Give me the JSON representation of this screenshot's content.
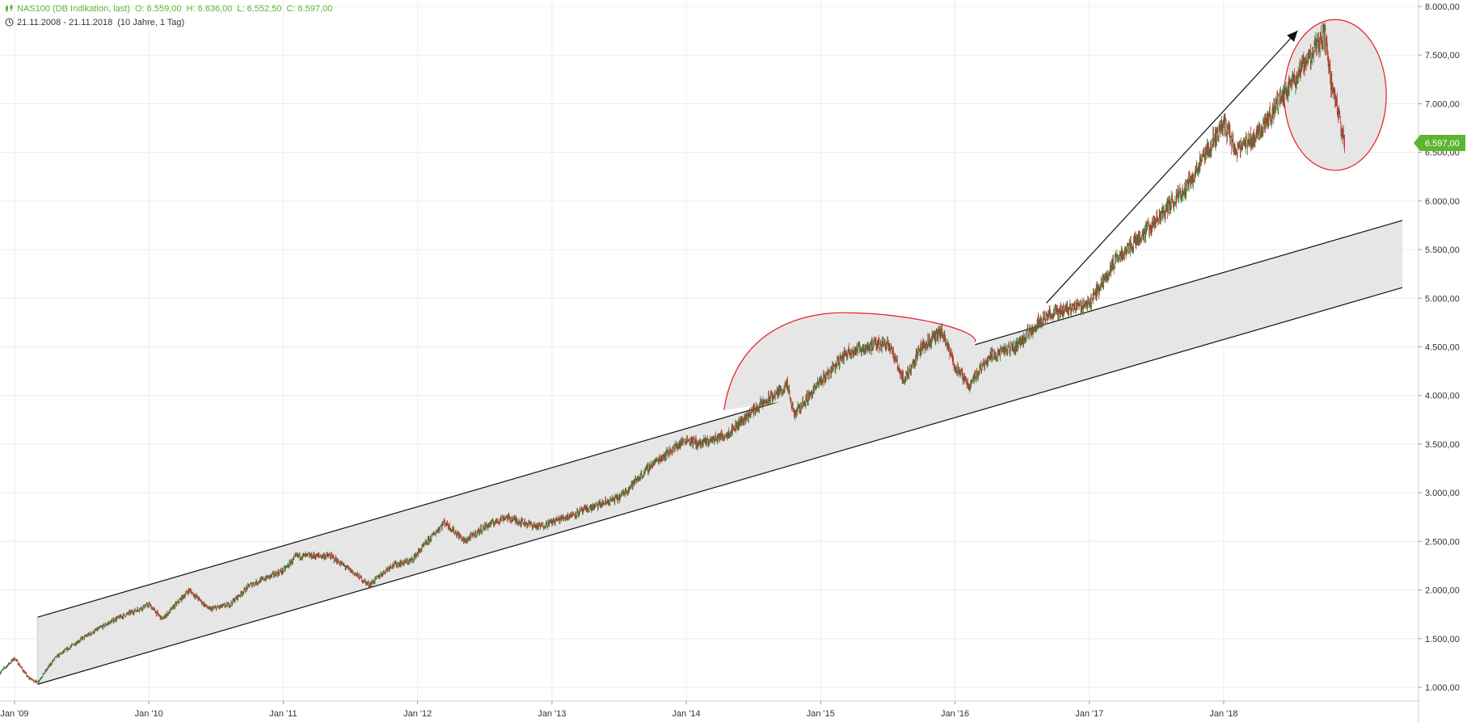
{
  "header": {
    "symbol": "NAS100 (DB Indikation, last)",
    "open": "O: 6.559,00",
    "high": "H: 6.636,00",
    "low": "L: 6.552,50",
    "close": "C: 6.597,00",
    "range": "21.11.2008 - 21.11.2018",
    "period": "(10 Jahre, 1 Tag)"
  },
  "colors": {
    "header": "#5cb531",
    "candle_up": "#2e7d32",
    "candle_down": "#c62828",
    "last_label_bg": "#5cb531",
    "highlight": "#e8192c",
    "channel_fill": "#e6e6e6"
  },
  "chart_data": {
    "type": "candlestick",
    "title": "NAS100 (DB Indikation, last)",
    "y_ticks": [
      "1.000,00",
      "1.500,00",
      "2.000,00",
      "2.500,00",
      "3.000,00",
      "3.500,00",
      "4.000,00",
      "4.500,00",
      "5.000,00",
      "5.500,00",
      "6.000,00",
      "6.500,00",
      "7.000,00",
      "7.500,00",
      "8.000,00"
    ],
    "y_tick_values": [
      1000,
      1500,
      2000,
      2500,
      3000,
      3500,
      4000,
      4500,
      5000,
      5500,
      6000,
      6500,
      7000,
      7500,
      8000
    ],
    "ylim": [
      930,
      8000
    ],
    "x_ticks": [
      "Jan '09",
      "Jan '10",
      "Jan '11",
      "Jan '12",
      "Jan '13",
      "Jan '14",
      "Jan '15",
      "Jan '16",
      "Jan '17",
      "Jan '18"
    ],
    "x_tick_values": [
      2009.0,
      2010.0,
      2011.0,
      2012.0,
      2013.0,
      2014.0,
      2015.0,
      2016.0,
      2017.0,
      2018.0
    ],
    "xlim": [
      2008.89,
      2019.45
    ],
    "grid": true,
    "last_value": 6597,
    "last_label": "6.597,00",
    "series": [
      {
        "x": [
          2008.89,
          2009.0,
          2009.1,
          2009.17,
          2009.3,
          2009.5,
          2009.75,
          2010.0,
          2010.1,
          2010.3,
          2010.45,
          2010.6,
          2010.75,
          2011.0,
          2011.1,
          2011.35,
          2011.55,
          2011.64,
          2011.8,
          2011.95,
          2012.2,
          2012.35,
          2012.5,
          2012.65,
          2012.9,
          2013.0,
          2013.3,
          2013.5,
          2013.75,
          2014.0,
          2014.1,
          2014.3,
          2014.5,
          2014.75,
          2014.8,
          2015.0,
          2015.2,
          2015.5,
          2015.62,
          2015.75,
          2015.9,
          2016.0,
          2016.1,
          2016.25,
          2016.45,
          2016.65,
          2016.85,
          2017.0,
          2017.2,
          2017.5,
          2017.75,
          2018.0,
          2018.1,
          2018.25,
          2018.55,
          2018.75,
          2018.8,
          2018.9
        ],
        "y": [
          1150,
          1300,
          1100,
          1050,
          1300,
          1500,
          1700,
          1850,
          1700,
          2000,
          1800,
          1850,
          2050,
          2200,
          2350,
          2350,
          2150,
          2050,
          2250,
          2300,
          2700,
          2500,
          2650,
          2750,
          2650,
          2700,
          2850,
          2950,
          3300,
          3550,
          3500,
          3600,
          3850,
          4100,
          3800,
          4150,
          4450,
          4550,
          4150,
          4500,
          4650,
          4300,
          4100,
          4400,
          4500,
          4800,
          4900,
          4950,
          5400,
          5800,
          6200,
          6800,
          6500,
          6700,
          7300,
          7700,
          7200,
          6600
        ]
      }
    ],
    "annotations": {
      "arrow": {
        "from": [
          2016.68,
          4950
        ],
        "to": [
          2018.55,
          7750
        ]
      },
      "channel": {
        "upper_start": [
          2009.17,
          1720
        ],
        "upper_end": [
          2019.33,
          5800
        ],
        "lower_start": [
          2009.17,
          1030
        ],
        "lower_end": [
          2019.33,
          5110
        ]
      },
      "dome_2015": {
        "x_start": 2014.28,
        "x_end": 2016.15,
        "base": 3850,
        "peak": 4850
      },
      "ellipse_2018": {
        "cx": 2018.83,
        "cy": 7090,
        "rx": 0.38,
        "ry": 775
      }
    }
  }
}
